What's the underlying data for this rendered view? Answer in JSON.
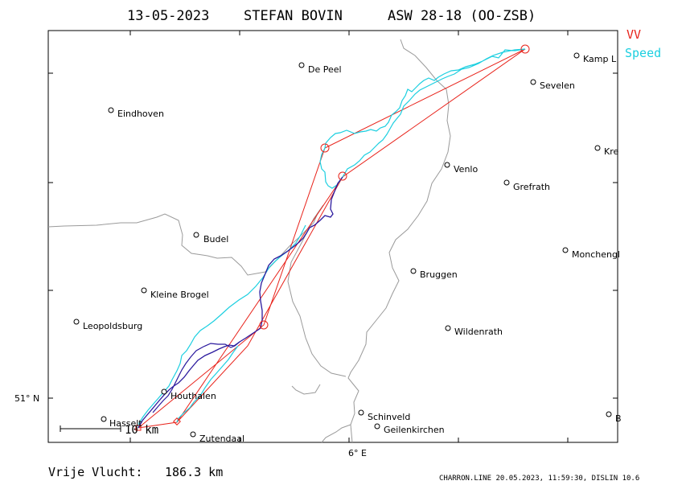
{
  "header": {
    "date": "13-05-2023",
    "pilot": "STEFAN BOVIN",
    "glider": "ASW 28-18 (OO-ZSB)"
  },
  "legend": [
    {
      "label": "VV",
      "color": "#e8231b"
    },
    {
      "label": "Speed",
      "color": "#1ccfe0"
    }
  ],
  "colors": {
    "border": "#9a9a9a",
    "track_climb": "#2b1a9e",
    "track_speed": "#1ccfe0",
    "task": "#e8231b"
  },
  "axis": {
    "lat_label": "51° N",
    "lon_label": "6° E"
  },
  "scale_bar": {
    "label": "10 km"
  },
  "towns": [
    {
      "name": "De Peel"
    },
    {
      "name": "Kamp L"
    },
    {
      "name": "Sevelen"
    },
    {
      "name": "Eindhoven"
    },
    {
      "name": "Kre"
    },
    {
      "name": "Venlo"
    },
    {
      "name": "Grefrath"
    },
    {
      "name": "Budel"
    },
    {
      "name": "Monchengl"
    },
    {
      "name": "Bruggen"
    },
    {
      "name": "Kleine Brogel"
    },
    {
      "name": "Leopoldsburg"
    },
    {
      "name": "Wildenrath"
    },
    {
      "name": "Houthalen"
    },
    {
      "name": "Hasselt"
    },
    {
      "name": "Schinveld"
    },
    {
      "name": "Geilenkirchen"
    },
    {
      "name": "Zutendaal"
    },
    {
      "name": "B"
    }
  ],
  "footer": {
    "distance_label": "Vrije Vlucht:",
    "distance_value": "186.3 km",
    "credit": "CHARRON.LINE 20.05.2023, 11:59:30, DISLIN 10.6"
  }
}
